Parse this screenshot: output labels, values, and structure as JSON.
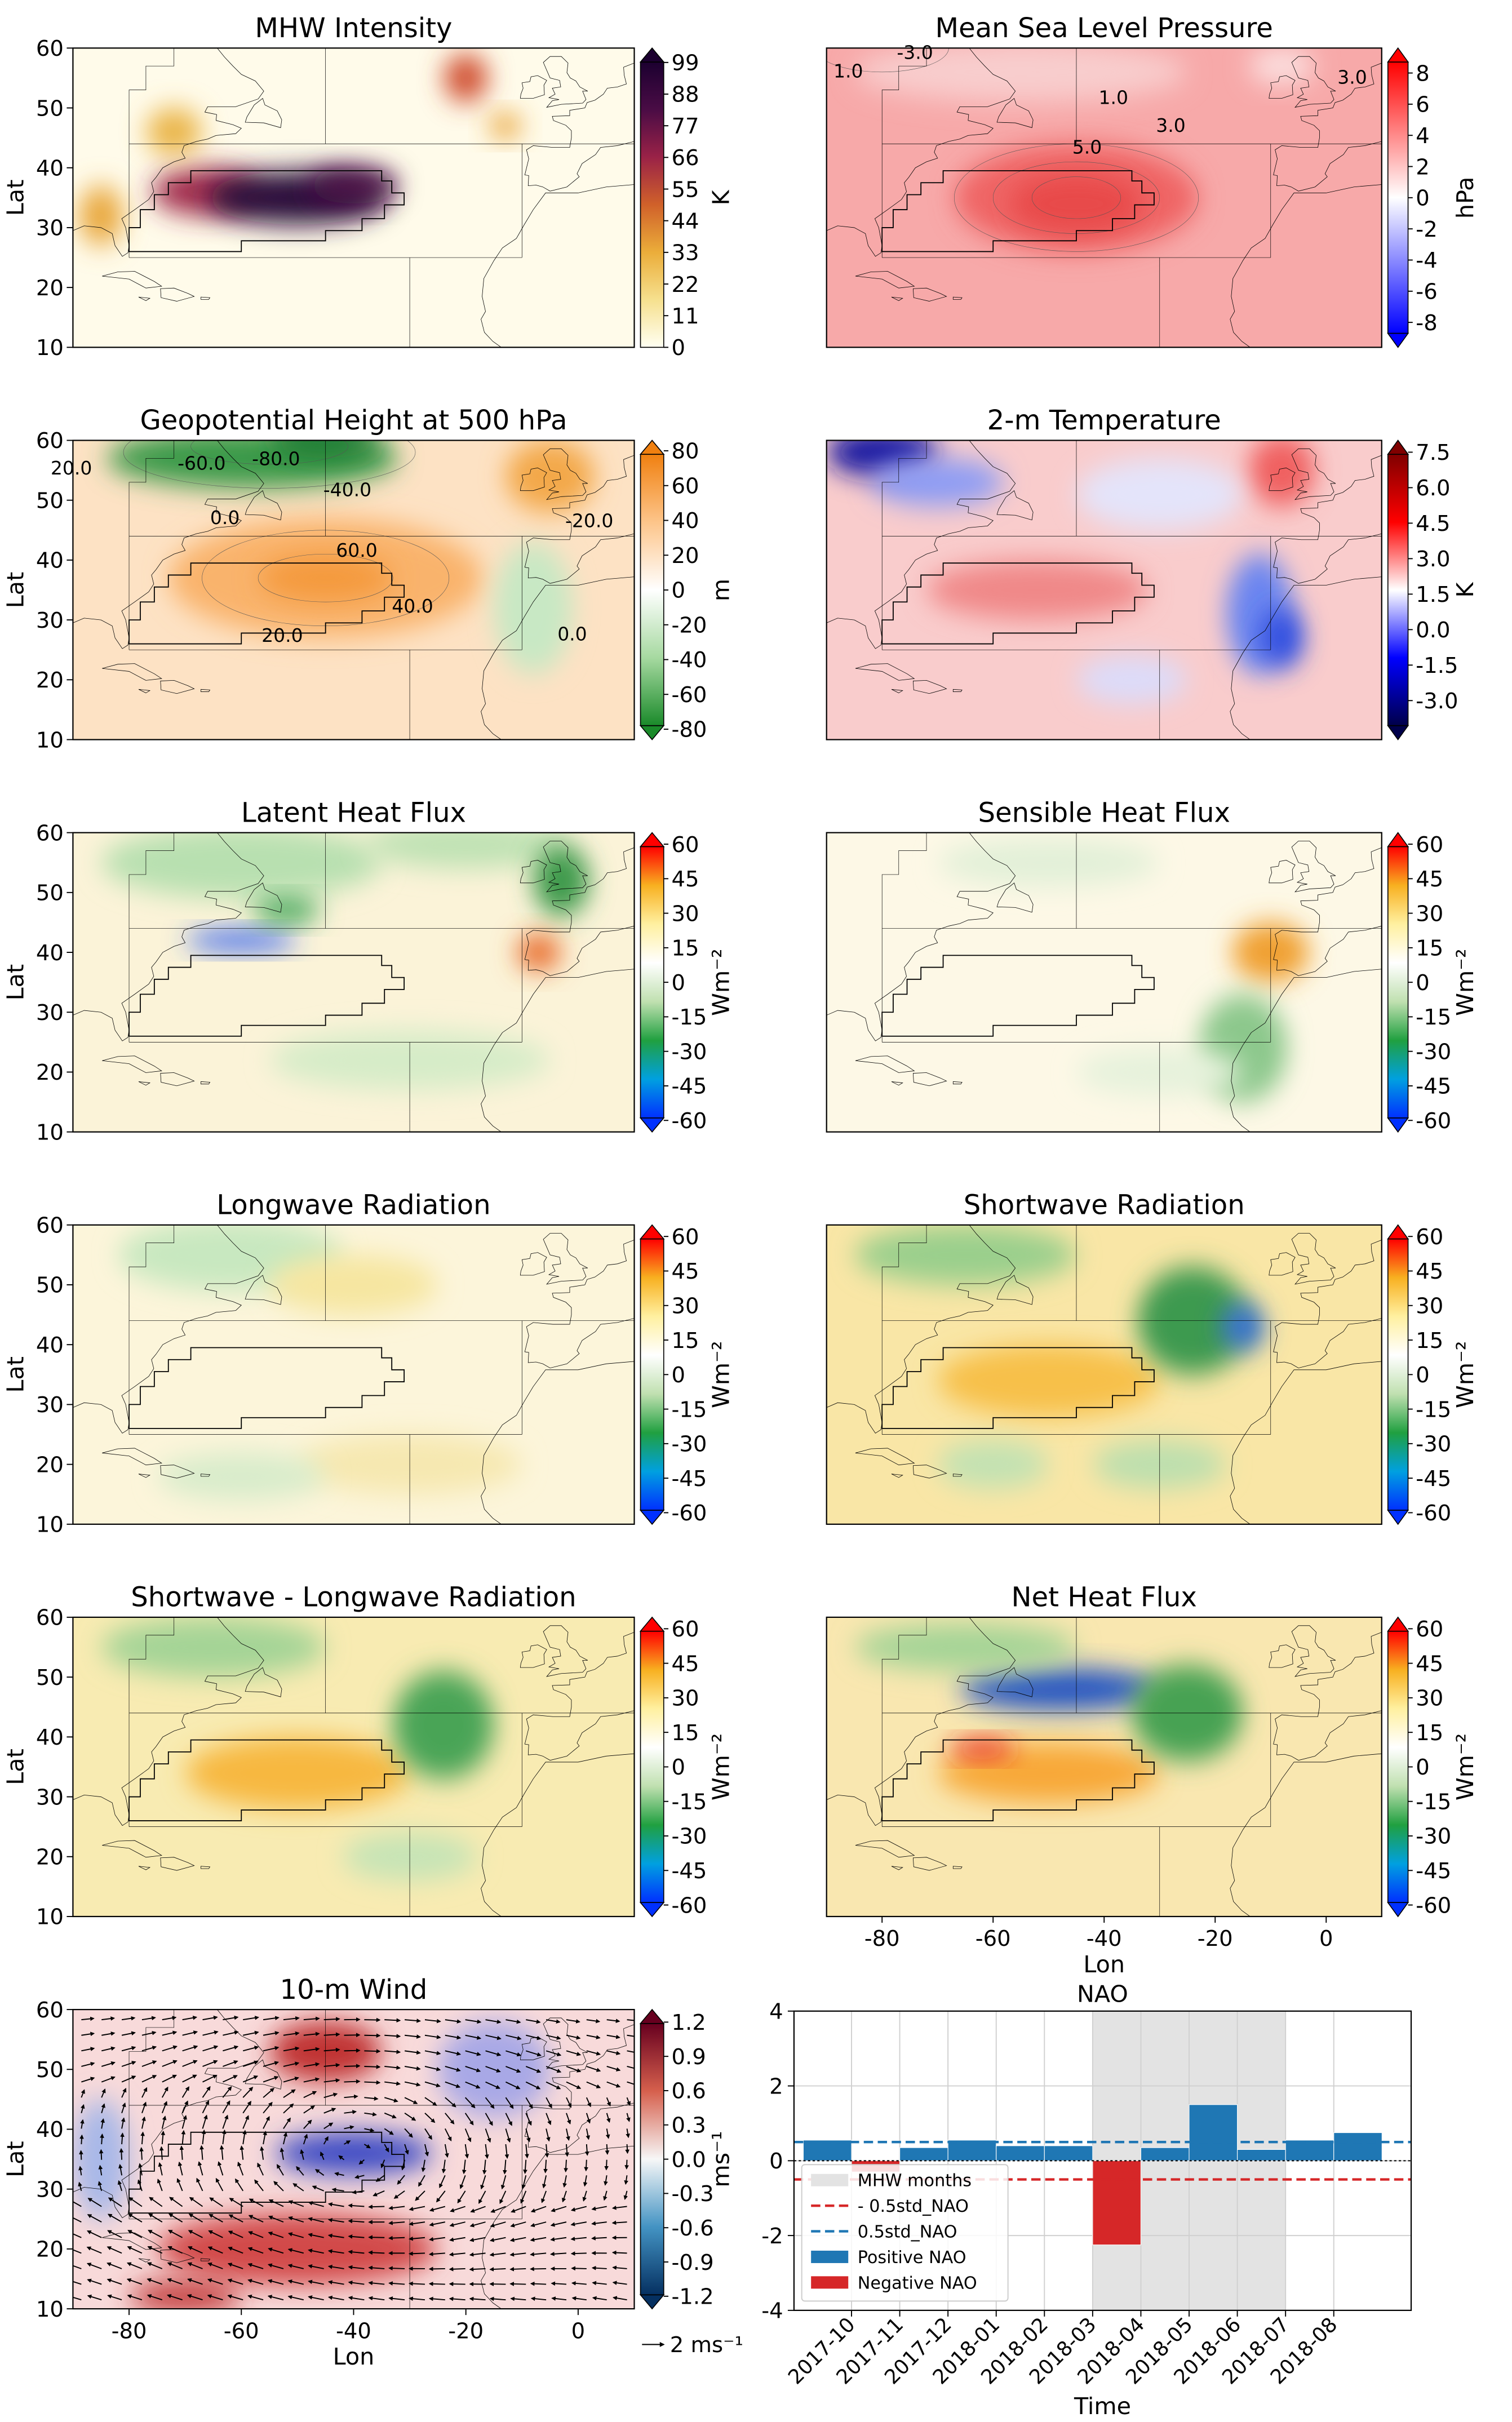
{
  "chart_data": [
    {
      "type": "map",
      "title": "MHW Intensity",
      "ylabel": "Lat",
      "xlim": [
        -90,
        10
      ],
      "ylim": [
        10,
        60
      ],
      "yticks": [
        10,
        20,
        30,
        40,
        50,
        60
      ],
      "colorbar": {
        "label": "K",
        "lim": [
          0,
          104
        ],
        "extend": "max",
        "ticks": [
          0,
          11,
          22,
          33,
          44,
          55,
          66,
          77,
          88,
          99
        ],
        "colors": [
          "#fffff2",
          "#f6e08e",
          "#ebad3a",
          "#d0612a",
          "#9a2247",
          "#4a0c45",
          "#1c0030"
        ]
      }
    },
    {
      "type": "map",
      "title": "Mean Sea Level Pressure",
      "xlim": [
        -90,
        10
      ],
      "ylim": [
        10,
        60
      ],
      "colorbar": {
        "label": "hPa",
        "lim": [
          -9.6,
          9.6
        ],
        "extend": "both",
        "ticks": [
          -8,
          -6,
          -4,
          -2,
          0,
          2,
          4,
          6,
          8
        ],
        "colors": [
          "#0000ff",
          "#8080ff",
          "#ffffff",
          "#ff8080",
          "#ff0000"
        ]
      },
      "contour_labels": [
        {
          "value": -3,
          "label": "-3.0"
        },
        {
          "value": 1,
          "label": "1.0"
        },
        {
          "value": 1,
          "label": "1.0"
        },
        {
          "value": 3,
          "label": "3.0"
        },
        {
          "value": 5,
          "label": "5.0"
        },
        {
          "value": 3,
          "label": "3.0"
        }
      ]
    },
    {
      "type": "map",
      "title": "Geopotential Height at 500 hPa",
      "ylabel": "Lat",
      "xlim": [
        -90,
        10
      ],
      "ylim": [
        10,
        60
      ],
      "yticks": [
        10,
        20,
        30,
        40,
        50,
        60
      ],
      "colorbar": {
        "label": "m",
        "lim": [
          -86,
          86
        ],
        "extend": "both",
        "ticks": [
          -80,
          -60,
          -40,
          -20,
          0,
          20,
          40,
          60,
          80
        ],
        "colors": [
          "#1a8a2a",
          "#a6d9a0",
          "#ffffff",
          "#fdc58a",
          "#f08010"
        ]
      },
      "contour_labels": [
        {
          "value": 20,
          "label": "20.0"
        },
        {
          "value": -60,
          "label": "-60.0"
        },
        {
          "value": -80,
          "label": "-80.0"
        },
        {
          "value": -40,
          "label": "-40.0"
        },
        {
          "value": 0,
          "label": "0.0"
        },
        {
          "value": -20,
          "label": "-20.0"
        },
        {
          "value": 60,
          "label": "60.0"
        },
        {
          "value": 40,
          "label": "40.0"
        },
        {
          "value": 20,
          "label": "20.0"
        },
        {
          "value": 0,
          "label": "0.0"
        }
      ]
    },
    {
      "type": "map",
      "title": "2-m Temperature",
      "xlim": [
        -90,
        10
      ],
      "ylim": [
        10,
        60
      ],
      "colorbar": {
        "label": "K",
        "lim": [
          -4.65,
          8.0
        ],
        "extend": "both",
        "ticks": [
          {
            "value": -3,
            "label": "-3.0"
          },
          -1.5,
          {
            "value": 0,
            "label": "0.0"
          },
          1.5,
          {
            "value": 3,
            "label": "3.0"
          },
          4.5,
          {
            "value": 6,
            "label": "6.0"
          },
          7.5
        ],
        "colors": [
          "#00004a",
          "#0000ff",
          "#ffffff",
          "#ff0000",
          "#800000"
        ]
      }
    },
    {
      "type": "map",
      "title": "Latent Heat Flux",
      "ylabel": "Lat",
      "xlim": [
        -90,
        10
      ],
      "ylim": [
        10,
        60
      ],
      "yticks": [
        10,
        20,
        30,
        40,
        50,
        60
      ],
      "colorbar": {
        "label": "Wm⁻²",
        "lim": [
          -65,
          65
        ],
        "extend": "both",
        "ticks": [
          -60,
          -45,
          -30,
          -15,
          0,
          15,
          30,
          45,
          60
        ],
        "colors": [
          "#0030ff",
          "#00a0e0",
          "#20a040",
          "#c0e0b0",
          "#ffffff",
          "#fff0a0",
          "#f8b020",
          "#ff0000"
        ]
      }
    },
    {
      "type": "map",
      "title": "Sensible Heat Flux",
      "xlim": [
        -90,
        10
      ],
      "ylim": [
        10,
        60
      ],
      "colorbar": {
        "label": "Wm⁻²",
        "lim": [
          -65,
          65
        ],
        "extend": "both",
        "ticks": [
          -60,
          -45,
          -30,
          -15,
          0,
          15,
          30,
          45,
          60
        ],
        "colors": [
          "#0030ff",
          "#00a0e0",
          "#20a040",
          "#c0e0b0",
          "#ffffff",
          "#fff0a0",
          "#f8b020",
          "#ff0000"
        ]
      }
    },
    {
      "type": "map",
      "title": "Longwave Radiation",
      "ylabel": "Lat",
      "xlim": [
        -90,
        10
      ],
      "ylim": [
        10,
        60
      ],
      "yticks": [
        10,
        20,
        30,
        40,
        50,
        60
      ],
      "colorbar": {
        "label": "Wm⁻²",
        "lim": [
          -65,
          65
        ],
        "extend": "both",
        "ticks": [
          -60,
          -45,
          -30,
          -15,
          0,
          15,
          30,
          45,
          60
        ],
        "colors": [
          "#0030ff",
          "#00a0e0",
          "#20a040",
          "#c0e0b0",
          "#ffffff",
          "#fff0a0",
          "#f8b020",
          "#ff0000"
        ]
      }
    },
    {
      "type": "map",
      "title": "Shortwave Radiation",
      "xlim": [
        -90,
        10
      ],
      "ylim": [
        10,
        60
      ],
      "colorbar": {
        "label": "Wm⁻²",
        "lim": [
          -65,
          65
        ],
        "extend": "both",
        "ticks": [
          -60,
          -45,
          -30,
          -15,
          0,
          15,
          30,
          45,
          60
        ],
        "colors": [
          "#0030ff",
          "#00a0e0",
          "#20a040",
          "#c0e0b0",
          "#ffffff",
          "#fff0a0",
          "#f8b020",
          "#ff0000"
        ]
      }
    },
    {
      "type": "map",
      "title": "Shortwave - Longwave Radiation",
      "ylabel": "Lat",
      "xlim": [
        -90,
        10
      ],
      "ylim": [
        10,
        60
      ],
      "yticks": [
        10,
        20,
        30,
        40,
        50,
        60
      ],
      "colorbar": {
        "label": "Wm⁻²",
        "lim": [
          -65,
          65
        ],
        "extend": "both",
        "ticks": [
          -60,
          -45,
          -30,
          -15,
          0,
          15,
          30,
          45,
          60
        ],
        "colors": [
          "#0030ff",
          "#00a0e0",
          "#20a040",
          "#c0e0b0",
          "#ffffff",
          "#fff0a0",
          "#f8b020",
          "#ff0000"
        ]
      }
    },
    {
      "type": "map",
      "title": "Net Heat Flux",
      "xlabel": "Lon",
      "xlim": [
        -90,
        10
      ],
      "ylim": [
        10,
        60
      ],
      "xticks": [
        -80,
        -60,
        -40,
        -20,
        0
      ],
      "colorbar": {
        "label": "Wm⁻²",
        "lim": [
          -65,
          65
        ],
        "extend": "both",
        "ticks": [
          -60,
          -45,
          -30,
          -15,
          0,
          15,
          30,
          45,
          60
        ],
        "colors": [
          "#0030ff",
          "#00a0e0",
          "#20a040",
          "#c0e0b0",
          "#ffffff",
          "#fff0a0",
          "#f8b020",
          "#ff0000"
        ]
      }
    },
    {
      "type": "map",
      "title": "10-m Wind",
      "ylabel": "Lat",
      "xlabel": "Lon",
      "xlim": [
        -90,
        10
      ],
      "ylim": [
        10,
        60
      ],
      "yticks": [
        10,
        20,
        30,
        40,
        50,
        60
      ],
      "xticks": [
        -80,
        -60,
        -40,
        -20,
        0
      ],
      "quiver_key": "2 ms⁻¹",
      "colorbar": {
        "label": "ms⁻¹",
        "lim": [
          -1.31,
          1.31
        ],
        "extend": "both",
        "ticks": [
          -1.2,
          -0.9,
          -0.6,
          -0.3,
          {
            "value": 0,
            "label": "0.0"
          },
          0.3,
          0.6,
          0.9,
          1.2
        ],
        "colors": [
          "#053061",
          "#4393c3",
          "#f7f7f7",
          "#d6604d",
          "#67001f"
        ]
      }
    },
    {
      "type": "bar",
      "title": "NAO",
      "xlabel": "Time",
      "ylim": [
        -4,
        4
      ],
      "yticks": [
        -4,
        -2,
        0,
        2,
        4
      ],
      "grid": true,
      "categories": [
        null,
        "2017-10",
        "2017-11",
        "2017-12",
        "2018-01",
        "2018-02",
        "2018-03",
        "2018-04",
        "2018-05",
        "2018-06",
        "2018-07",
        "2018-08"
      ],
      "span": {
        "name": "MHW months",
        "from": "2018-03",
        "to": "2018-07",
        "color": "#e3e3e3"
      },
      "reference_lines": [
        {
          "name": "- 0.5std_NAO",
          "value": -0.5,
          "color": "#d62728"
        },
        {
          "name": "0.5std_NAO",
          "value": 0.5,
          "color": "#1f77b4"
        }
      ],
      "series": [
        {
          "name": "Positive NAO",
          "color": "#1f77b4",
          "values": [
            0.55,
            null,
            0.35,
            0.55,
            0.4,
            0.4,
            null,
            0.35,
            1.5,
            0.3,
            0.55,
            0.75
          ]
        },
        {
          "name": "Negative NAO",
          "color": "#d62728",
          "values": [
            null,
            -0.3,
            null,
            null,
            null,
            null,
            -2.25,
            null,
            null,
            null,
            null,
            null
          ]
        }
      ]
    }
  ]
}
